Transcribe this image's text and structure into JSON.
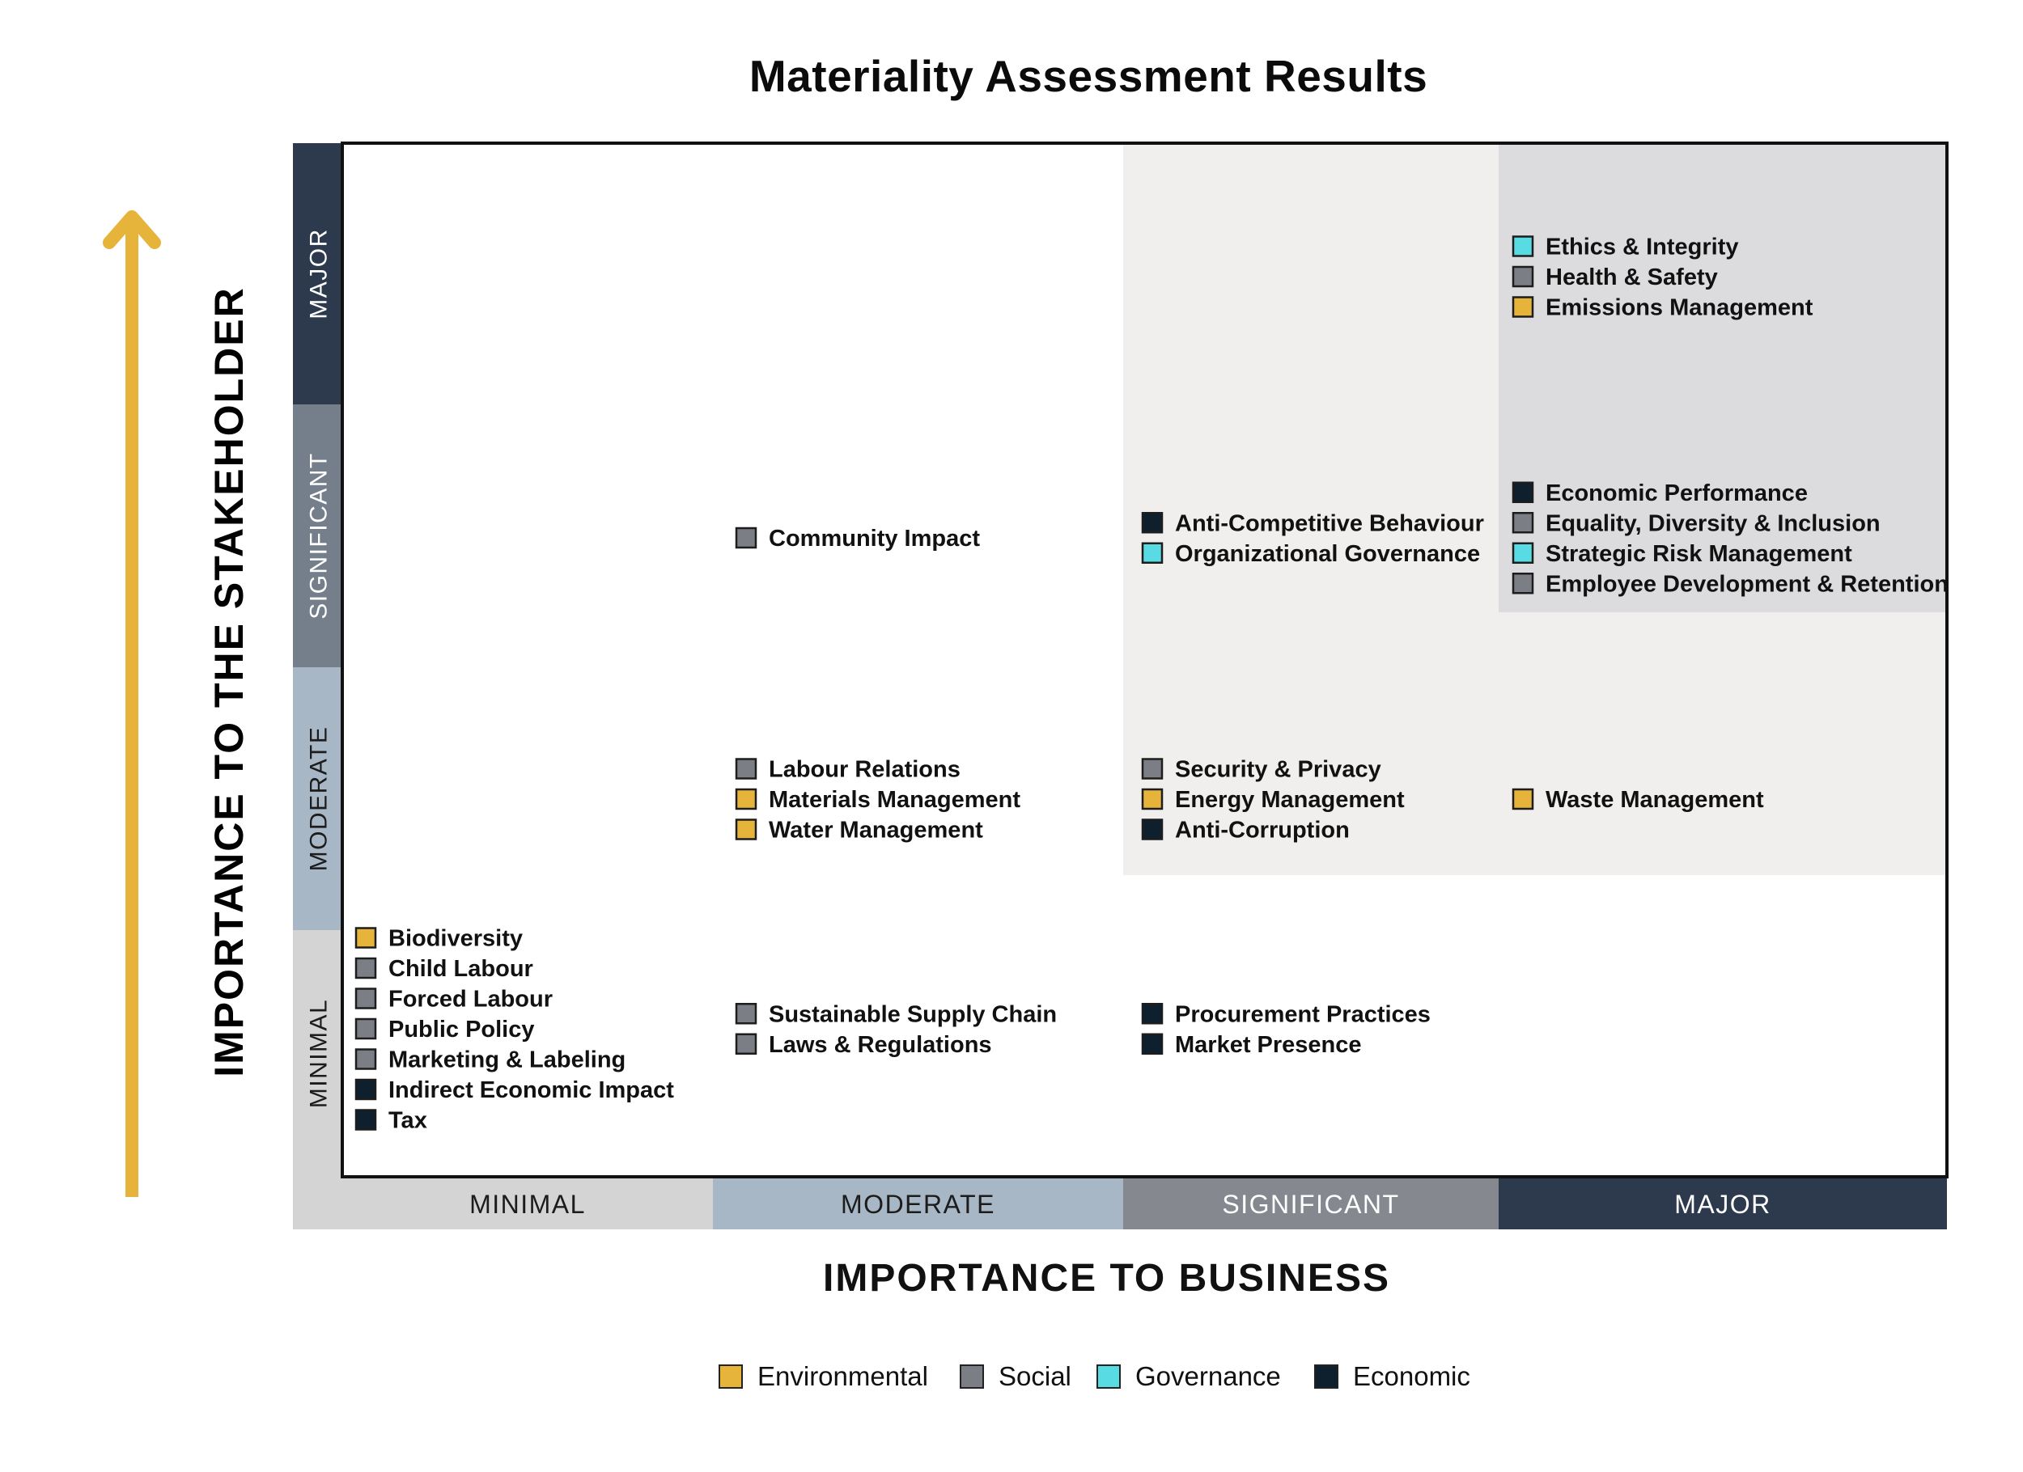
{
  "chart_data": {
    "type": "matrix",
    "title": "Materiality Assessment Results",
    "xlabel": "IMPORTANCE TO BUSINESS",
    "ylabel": "IMPORTANCE TO THE STAKEHOLDER",
    "levels": [
      "MINIMAL",
      "MODERATE",
      "SIGNIFICANT",
      "MAJOR"
    ],
    "categories": [
      {
        "name": "Environmental",
        "color": "#e6b43a"
      },
      {
        "name": "Social",
        "color": "#7b7e85"
      },
      {
        "name": "Governance",
        "color": "#58dbe2"
      },
      {
        "name": "Economic",
        "color": "#0e1f2d"
      }
    ],
    "cells": [
      {
        "x": "MAJOR",
        "y": "MAJOR",
        "items": [
          {
            "label": "Ethics & Integrity",
            "category": "Governance"
          },
          {
            "label": "Health & Safety",
            "category": "Social"
          },
          {
            "label": "Emissions Management",
            "category": "Environmental"
          }
        ]
      },
      {
        "x": "MODERATE",
        "y": "SIGNIFICANT",
        "items": [
          {
            "label": "Community Impact",
            "category": "Social"
          }
        ]
      },
      {
        "x": "SIGNIFICANT",
        "y": "SIGNIFICANT",
        "items": [
          {
            "label": "Anti-Competitive Behaviour",
            "category": "Economic"
          },
          {
            "label": "Organizational Governance",
            "category": "Governance"
          }
        ]
      },
      {
        "x": "MAJOR",
        "y": "SIGNIFICANT",
        "items": [
          {
            "label": "Economic Performance",
            "category": "Economic"
          },
          {
            "label": "Equality, Diversity & Inclusion",
            "category": "Social"
          },
          {
            "label": "Strategic Risk Management",
            "category": "Governance"
          },
          {
            "label": "Employee Development & Retention",
            "category": "Social"
          }
        ]
      },
      {
        "x": "MODERATE",
        "y": "MODERATE",
        "items": [
          {
            "label": "Labour Relations",
            "category": "Social"
          },
          {
            "label": "Materials Management",
            "category": "Environmental"
          },
          {
            "label": "Water Management",
            "category": "Environmental"
          }
        ]
      },
      {
        "x": "SIGNIFICANT",
        "y": "MODERATE",
        "items": [
          {
            "label": "Security & Privacy",
            "category": "Social"
          },
          {
            "label": "Energy Management",
            "category": "Environmental"
          },
          {
            "label": "Anti-Corruption",
            "category": "Economic"
          }
        ]
      },
      {
        "x": "MAJOR",
        "y": "MODERATE",
        "items": [
          {
            "label": "Waste Management",
            "category": "Environmental"
          }
        ]
      },
      {
        "x": "MINIMAL",
        "y": "MINIMAL",
        "items": [
          {
            "label": "Biodiversity",
            "category": "Environmental"
          },
          {
            "label": "Child Labour",
            "category": "Social"
          },
          {
            "label": "Forced Labour",
            "category": "Social"
          },
          {
            "label": "Public Policy",
            "category": "Social"
          },
          {
            "label": "Marketing & Labeling",
            "category": "Social"
          },
          {
            "label": "Indirect Economic Impact",
            "category": "Economic"
          },
          {
            "label": "Tax",
            "category": "Economic"
          }
        ]
      },
      {
        "x": "MODERATE",
        "y": "MINIMAL",
        "items": [
          {
            "label": "Sustainable Supply Chain",
            "category": "Social"
          },
          {
            "label": "Laws & Regulations",
            "category": "Social"
          }
        ]
      },
      {
        "x": "SIGNIFICANT",
        "y": "MINIMAL",
        "items": [
          {
            "label": "Procurement Practices",
            "category": "Economic"
          },
          {
            "label": "Market Presence",
            "category": "Economic"
          }
        ]
      }
    ],
    "legend_placement": "bottom"
  }
}
